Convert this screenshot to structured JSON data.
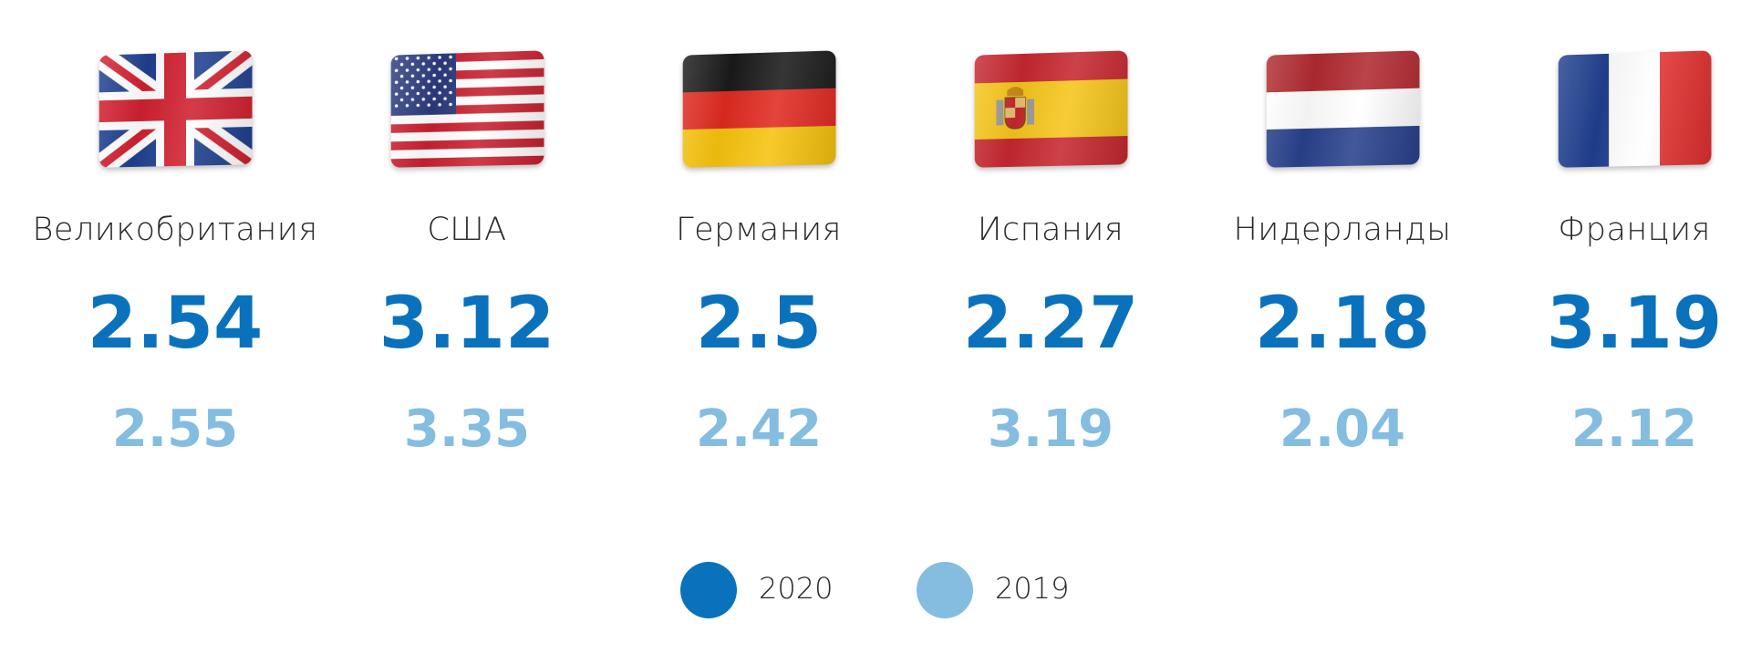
{
  "chart_data": {
    "type": "table",
    "categories": [
      "Великобритания",
      "США",
      "Германия",
      "Испания",
      "Нидерланды",
      "Франция"
    ],
    "flags": [
      "flag-uk-icon",
      "flag-usa-icon",
      "flag-germany-icon",
      "flag-spain-icon",
      "flag-netherlands-icon",
      "flag-france-icon"
    ],
    "series": [
      {
        "name": "2020",
        "color": "#0a72bd",
        "values": [
          2.54,
          3.12,
          2.5,
          2.27,
          2.18,
          3.19
        ]
      },
      {
        "name": "2019",
        "color": "#84bde0",
        "values": [
          2.55,
          3.35,
          2.42,
          3.19,
          2.04,
          2.12
        ]
      }
    ],
    "legend": "bottom-center"
  }
}
